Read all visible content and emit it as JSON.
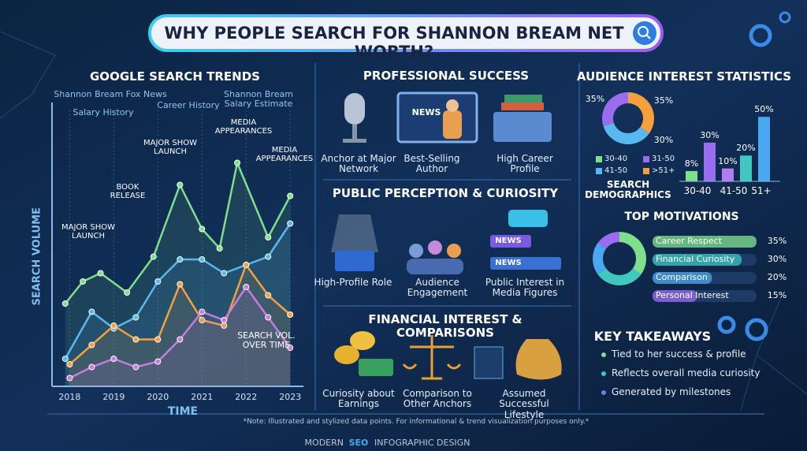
{
  "header": {
    "title": "WHY PEOPLE SEARCH FOR SHANNON BREAM NET WORTH?"
  },
  "trends": {
    "title": "GOOGLE SEARCH TRENDS",
    "y_label": "SEARCH VOLUME",
    "x_label": "TIME",
    "xticks": [
      2018,
      2019,
      2020,
      2021,
      2022,
      2023
    ],
    "xlim": [
      2017.6,
      2023.3
    ],
    "ylim": [
      0,
      100
    ],
    "series": [
      {
        "color": "#7ee08a",
        "x": [
          2017.9,
          2018.3,
          2018.7,
          2019.3,
          2019.9,
          2020.5,
          2021,
          2021.4,
          2021.8,
          2022.5,
          2023
        ],
        "values": [
          30,
          38,
          41,
          34,
          47,
          73,
          57,
          50,
          81,
          54,
          69
        ]
      },
      {
        "color": "#5ab8f0",
        "x": [
          2017.9,
          2018.5,
          2019,
          2019.5,
          2020,
          2020.5,
          2021,
          2021.5,
          2022,
          2022.5,
          2023
        ],
        "values": [
          10,
          27,
          21,
          25,
          38,
          46,
          46,
          41,
          44,
          47,
          59
        ]
      },
      {
        "color": "#f5a03c",
        "x": [
          2018,
          2018.5,
          2019,
          2019.5,
          2020,
          2020.5,
          2021,
          2021.5,
          2022,
          2022.5,
          2023
        ],
        "values": [
          8,
          15,
          22,
          17,
          17,
          37,
          24,
          22,
          44,
          33,
          26
        ]
      },
      {
        "color": "#c77ce0",
        "x": [
          2018,
          2018.5,
          2019,
          2019.5,
          2020,
          2020.5,
          2021,
          2021.5,
          2022,
          2022.5,
          2023
        ],
        "values": [
          3,
          7,
          10,
          7,
          9,
          17,
          27,
          24,
          36,
          25,
          14
        ]
      }
    ],
    "annotations": [
      "Shannon Bream Fox News",
      "Salary History",
      "Career History",
      "Shannon Bream Salary Estimate",
      "MEDIA APPEARANCES",
      "MAJOR SHOW LAUNCH",
      "BOOK RELEASE",
      "MEDIA APPEARANCES",
      "MAJOR SHOW LAUNCH",
      "SEARCH VOL. OVER TIME"
    ]
  },
  "professional": {
    "title": "PROFESSIONAL SUCCESS",
    "icon_text": "NEWS",
    "items": [
      "Anchor at Major Network",
      "Best-Selling Author",
      "High Career Profile"
    ]
  },
  "perception": {
    "title": "PUBLIC PERCEPTION & CURIOSITY",
    "icon_texts": [
      "NEWS",
      "NEWS"
    ],
    "items": [
      "High-Profile Role",
      "Audience Engagement",
      "Public Interest in Media Figures"
    ]
  },
  "financial": {
    "title": "FINANCIAL INTEREST & COMPARISONS",
    "items": [
      "Curiosity about Earnings",
      "Comparison to Other Anchors",
      "Assumed Successful Lifestyle"
    ]
  },
  "audience": {
    "title": "AUDIENCE INTEREST STATISTICS",
    "donut": {
      "values": [
        35,
        35,
        30
      ],
      "value_labels": [
        "35%",
        "35%",
        "30%"
      ],
      "colors": [
        "#f5a03c",
        "#5ab8f0",
        "#9a6cf0"
      ]
    },
    "legend": [
      {
        "name": "30-40",
        "color": "#7ee08a"
      },
      {
        "name": "31-50",
        "color": "#9a6cf0"
      },
      {
        "name": "41-50",
        "color": "#5ab8f0"
      },
      {
        "name": ">51+",
        "color": "#f5a03c"
      }
    ],
    "caption": "SEARCH DEMOGRAPHICS",
    "bars": {
      "values": [
        8,
        30,
        10,
        20,
        50
      ],
      "value_labels": [
        "8%",
        "30%",
        "10%",
        "20%",
        "50%"
      ],
      "colors": [
        "#7ee08a",
        "#9a6cf0",
        "#b07cf0",
        "#3fc7c0",
        "#4aa8f0"
      ],
      "ylim": [
        0,
        55
      ],
      "group_labels": [
        "30-40",
        "41-50",
        "51+"
      ]
    }
  },
  "motivations": {
    "title": "TOP MOTIVATIONS",
    "xlim": [
      0,
      35
    ],
    "items": [
      {
        "name": "Career Respect",
        "value": 35,
        "label": "35%",
        "color": "#7ee08a"
      },
      {
        "name": "Financial Curiosity",
        "value": 30,
        "label": "30%",
        "color": "#3fc7c0"
      },
      {
        "name": "Comparison",
        "value": 20,
        "label": "20%",
        "color": "#4aa8f0"
      },
      {
        "name": "Personal Interest",
        "value": 15,
        "label": "15%",
        "color": "#9a6cf0"
      }
    ]
  },
  "takeaways": {
    "title": "KEY TAKEAWAYS",
    "items": [
      "Tied to her success & profile",
      "Reflects overall media curiosity",
      "Generated by milestones"
    ]
  },
  "footer": {
    "note": "*Note: Illustrated and stylized data points. For informational & trend visualization purposes only.*",
    "brand": [
      "MODERN",
      "SEO",
      "INFOGRAPHIC DESIGN"
    ]
  }
}
